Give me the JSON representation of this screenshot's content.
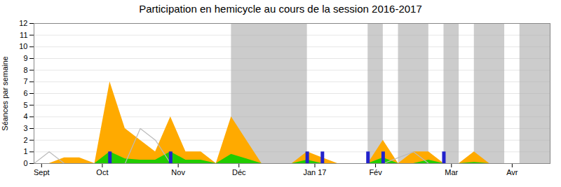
{
  "chart_data": {
    "type": "area",
    "title": "Participation en hemicycle au cours de la session 2016-2017",
    "y_label": "Séances par semaine",
    "x": [
      0,
      1,
      2,
      3,
      4,
      5,
      6,
      7,
      8,
      9,
      10,
      11,
      12,
      13,
      14,
      15,
      16,
      17,
      18,
      19,
      20,
      21,
      22,
      23,
      24,
      25,
      26,
      27,
      28,
      29,
      30,
      31,
      32,
      33
    ],
    "xlim": [
      0,
      34
    ],
    "xticks": [
      {
        "value": 0.5,
        "label": "Sept"
      },
      {
        "value": 4.5,
        "label": "Oct"
      },
      {
        "value": 9.5,
        "label": "Nov"
      },
      {
        "value": 13.5,
        "label": "Déc"
      },
      {
        "value": 18.5,
        "label": "Jan 17"
      },
      {
        "value": 22.5,
        "label": "Fév"
      },
      {
        "value": 27.5,
        "label": "Mar"
      },
      {
        "value": 31.5,
        "label": "Avr"
      }
    ],
    "ylim": [
      0,
      12
    ],
    "yticks": [
      0,
      1,
      2,
      3,
      4,
      5,
      6,
      7,
      8,
      9,
      10,
      11,
      12
    ],
    "grid": true,
    "bands": {
      "color": "#aaaaaa",
      "ranges": [
        [
          13,
          18
        ],
        [
          22,
          23
        ],
        [
          24,
          26
        ],
        [
          27,
          28
        ],
        [
          29,
          31
        ],
        [
          32,
          34
        ]
      ]
    },
    "series": [
      {
        "type": "area",
        "color": "#ffaa00",
        "values": [
          0,
          0,
          0.5,
          0.5,
          0,
          7,
          3,
          2,
          1,
          4,
          1,
          1,
          0,
          4,
          2,
          0,
          0,
          0,
          1,
          0.5,
          0,
          0,
          0,
          2,
          0,
          1,
          1,
          0,
          0,
          1,
          0,
          0,
          0,
          0
        ]
      },
      {
        "type": "area",
        "color": "#22cc00",
        "values": [
          0,
          0,
          0,
          0,
          0,
          1,
          0.4,
          0.3,
          0.3,
          1,
          0.3,
          0.3,
          0,
          0.8,
          0.4,
          0,
          0,
          0,
          0.3,
          0,
          0,
          0,
          0,
          0.5,
          0,
          0,
          0.3,
          0,
          0,
          0.1,
          0,
          0,
          0,
          0
        ]
      },
      {
        "type": "line",
        "color": "#bbbbbb",
        "values": [
          0,
          1,
          0,
          0,
          0,
          0,
          0,
          3,
          2,
          0,
          0,
          0,
          0,
          0,
          0,
          0,
          0,
          0,
          0,
          0,
          0,
          0,
          0,
          0,
          0.5,
          1,
          0,
          0,
          0,
          0,
          0,
          0,
          0,
          0
        ]
      },
      {
        "type": "bar",
        "color": "#2222cc",
        "values": [
          null,
          null,
          null,
          null,
          null,
          1,
          null,
          null,
          null,
          1,
          null,
          null,
          null,
          null,
          null,
          null,
          null,
          null,
          1,
          1,
          null,
          null,
          1,
          1,
          null,
          null,
          null,
          1,
          null,
          null,
          null,
          null,
          null,
          null
        ]
      }
    ]
  }
}
